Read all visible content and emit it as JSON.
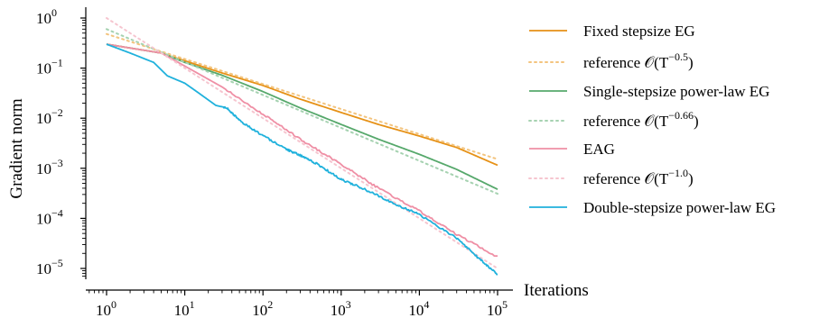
{
  "chart_data": {
    "type": "line",
    "xlabel": "Iterations",
    "ylabel": "Gradient norm",
    "xscale": "log",
    "yscale": "log",
    "xlim": [
      1,
      100000
    ],
    "ylim": [
      6e-06,
      1.0
    ],
    "x_ticks": [
      {
        "value": 1,
        "base": "10",
        "exp": "0"
      },
      {
        "value": 10,
        "base": "10",
        "exp": "1"
      },
      {
        "value": 100,
        "base": "10",
        "exp": "2"
      },
      {
        "value": 1000,
        "base": "10",
        "exp": "3"
      },
      {
        "value": 10000,
        "base": "10",
        "exp": "4"
      },
      {
        "value": 100000,
        "base": "10",
        "exp": "5"
      }
    ],
    "y_ticks": [
      {
        "value": 1,
        "base": "10",
        "exp": "0"
      },
      {
        "value": 0.1,
        "base": "10",
        "exp": "-1"
      },
      {
        "value": 0.01,
        "base": "10",
        "exp": "-2"
      },
      {
        "value": 0.001,
        "base": "10",
        "exp": "-3"
      },
      {
        "value": 0.0001,
        "base": "10",
        "exp": "-4"
      },
      {
        "value": 1e-05,
        "base": "10",
        "exp": "-5"
      }
    ],
    "grid": false,
    "legend_position": "right",
    "series": [
      {
        "name": "Fixed stepsize EG",
        "color": "#e69116",
        "style": "solid",
        "points": [
          [
            1,
            0.3
          ],
          [
            5,
            0.2
          ],
          [
            10,
            0.14
          ],
          [
            30,
            0.08
          ],
          [
            100,
            0.045
          ],
          [
            300,
            0.024
          ],
          [
            1000,
            0.013
          ],
          [
            3000,
            0.0075
          ],
          [
            10000,
            0.0044
          ],
          [
            30000,
            0.0026
          ],
          [
            100000,
            0.00115
          ]
        ]
      },
      {
        "name": "reference 𝒪(T^{-0.5})",
        "color": "#f3c47e",
        "style": "dotted",
        "points": [
          [
            1,
            0.48
          ],
          [
            100000,
            0.00152
          ]
        ]
      },
      {
        "name": "Single-stepsize power-law EG",
        "color": "#56a86b",
        "style": "solid",
        "points": [
          [
            1,
            0.3
          ],
          [
            5,
            0.2
          ],
          [
            10,
            0.13
          ],
          [
            30,
            0.072
          ],
          [
            100,
            0.034
          ],
          [
            300,
            0.016
          ],
          [
            1000,
            0.0075
          ],
          [
            3000,
            0.0038
          ],
          [
            10000,
            0.0019
          ],
          [
            30000,
            0.00095
          ],
          [
            100000,
            0.00038
          ]
        ]
      },
      {
        "name": "reference 𝒪(T^{-0.66})",
        "color": "#a6d2b1",
        "style": "dotted",
        "points": [
          [
            1,
            0.6
          ],
          [
            100000,
            0.00031
          ]
        ]
      },
      {
        "name": "EAG",
        "color": "#ef8fa5",
        "style": "solid",
        "points": [
          [
            1,
            0.3
          ],
          [
            5,
            0.2
          ],
          [
            10,
            0.11
          ],
          [
            30,
            0.042
          ],
          [
            100,
            0.012
          ],
          [
            300,
            0.0038
          ],
          [
            1000,
            0.0012
          ],
          [
            3000,
            0.0004
          ],
          [
            10000,
            0.00014
          ],
          [
            30000,
            4.8e-05
          ],
          [
            100000,
            1.7e-05
          ]
        ]
      },
      {
        "name": "reference 𝒪(T^{-1.0})",
        "color": "#f6c5cf",
        "style": "dotted",
        "points": [
          [
            1,
            1.0
          ],
          [
            100000,
            1e-05
          ]
        ]
      },
      {
        "name": "Double-stepsize power-law EG",
        "color": "#1fb1dc",
        "style": "solid",
        "points": [
          [
            1,
            0.3
          ],
          [
            2,
            0.2
          ],
          [
            4,
            0.13
          ],
          [
            6,
            0.07
          ],
          [
            10,
            0.05
          ],
          [
            15,
            0.032
          ],
          [
            25,
            0.018
          ],
          [
            35,
            0.016
          ],
          [
            50,
            0.009
          ],
          [
            100,
            0.0045
          ],
          [
            200,
            0.0024
          ],
          [
            300,
            0.0018
          ],
          [
            500,
            0.0012
          ],
          [
            1000,
            0.0006
          ],
          [
            2000,
            0.00038
          ],
          [
            5000,
            0.00019
          ],
          [
            10000,
            0.00012
          ],
          [
            30000,
            4e-05
          ],
          [
            60000,
            1.5e-05
          ],
          [
            100000,
            7.5e-06
          ]
        ]
      }
    ]
  },
  "legend": [
    {
      "label": "Fixed stepsize EG",
      "prefix": "",
      "exp": ""
    },
    {
      "label": "",
      "prefix": "reference 𝒪(T",
      "exp": "−0.5",
      "suffix": ")"
    },
    {
      "label": "Single-stepsize power-law EG",
      "prefix": "",
      "exp": ""
    },
    {
      "label": "",
      "prefix": "reference 𝒪(T",
      "exp": "−0.66",
      "suffix": ")"
    },
    {
      "label": "EAG",
      "prefix": "",
      "exp": ""
    },
    {
      "label": "",
      "prefix": "reference 𝒪(T",
      "exp": "−1.0",
      "suffix": ")"
    },
    {
      "label": "Double-stepsize power-law EG",
      "prefix": "",
      "exp": ""
    }
  ]
}
